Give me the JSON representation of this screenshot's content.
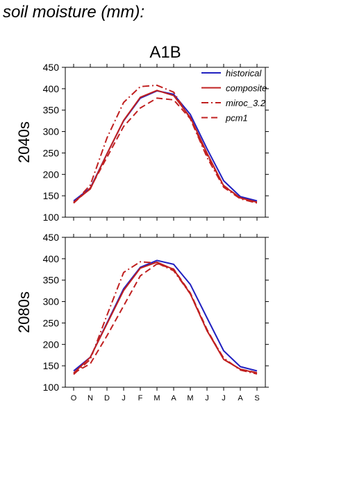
{
  "page": {
    "heading": "soil moisture (mm):"
  },
  "colors": {
    "historical": "#2020c0",
    "scenario": "#c02020"
  },
  "chart_data": [
    {
      "type": "line",
      "title": "A1B",
      "ylabel": "2040s",
      "xlabel": "",
      "categories": [
        "O",
        "N",
        "D",
        "J",
        "F",
        "M",
        "A",
        "M",
        "J",
        "J",
        "A",
        "S"
      ],
      "ylim": [
        100,
        450
      ],
      "yticks": [
        100,
        150,
        200,
        250,
        300,
        350,
        400,
        450
      ],
      "show_x_tick_labels": false,
      "legend": {
        "placement": "top-right"
      },
      "series": [
        {
          "name": "historical",
          "color": "#2020c0",
          "style": "solid",
          "values": [
            138,
            168,
            248,
            325,
            378,
            395,
            387,
            340,
            260,
            185,
            148,
            138
          ]
        },
        {
          "name": "composite",
          "color": "#c02020",
          "style": "solid",
          "values": [
            135,
            166,
            248,
            326,
            380,
            396,
            384,
            333,
            250,
            173,
            145,
            135
          ]
        },
        {
          "name": "miroc_3.2",
          "color": "#c02020",
          "style": "dashdot",
          "values": [
            133,
            175,
            285,
            368,
            405,
            408,
            392,
            330,
            240,
            170,
            143,
            133
          ]
        },
        {
          "name": "pcm1",
          "color": "#c02020",
          "style": "dash",
          "values": [
            133,
            168,
            240,
            312,
            355,
            378,
            374,
            330,
            245,
            174,
            145,
            134
          ]
        }
      ]
    },
    {
      "type": "line",
      "title": "",
      "ylabel": "2080s",
      "xlabel": "",
      "categories": [
        "O",
        "N",
        "D",
        "J",
        "F",
        "M",
        "A",
        "M",
        "J",
        "J",
        "A",
        "S"
      ],
      "ylim": [
        100,
        450
      ],
      "yticks": [
        100,
        150,
        200,
        250,
        300,
        350,
        400,
        450
      ],
      "show_x_tick_labels": true,
      "series": [
        {
          "name": "historical",
          "color": "#2020c0",
          "style": "solid",
          "values": [
            138,
            170,
            250,
            330,
            380,
            396,
            387,
            340,
            262,
            185,
            148,
            138
          ]
        },
        {
          "name": "composite",
          "color": "#c02020",
          "style": "solid",
          "values": [
            133,
            170,
            248,
            326,
            378,
            392,
            375,
            318,
            232,
            165,
            142,
            133
          ]
        },
        {
          "name": "miroc_3.2",
          "color": "#c02020",
          "style": "dashdot",
          "values": [
            130,
            165,
            268,
            368,
            393,
            390,
            372,
            318,
            232,
            168,
            140,
            131
          ]
        },
        {
          "name": "pcm1",
          "color": "#c02020",
          "style": "dash",
          "values": [
            133,
            155,
            220,
            290,
            360,
            388,
            376,
            320,
            235,
            165,
            142,
            134
          ]
        }
      ]
    }
  ]
}
